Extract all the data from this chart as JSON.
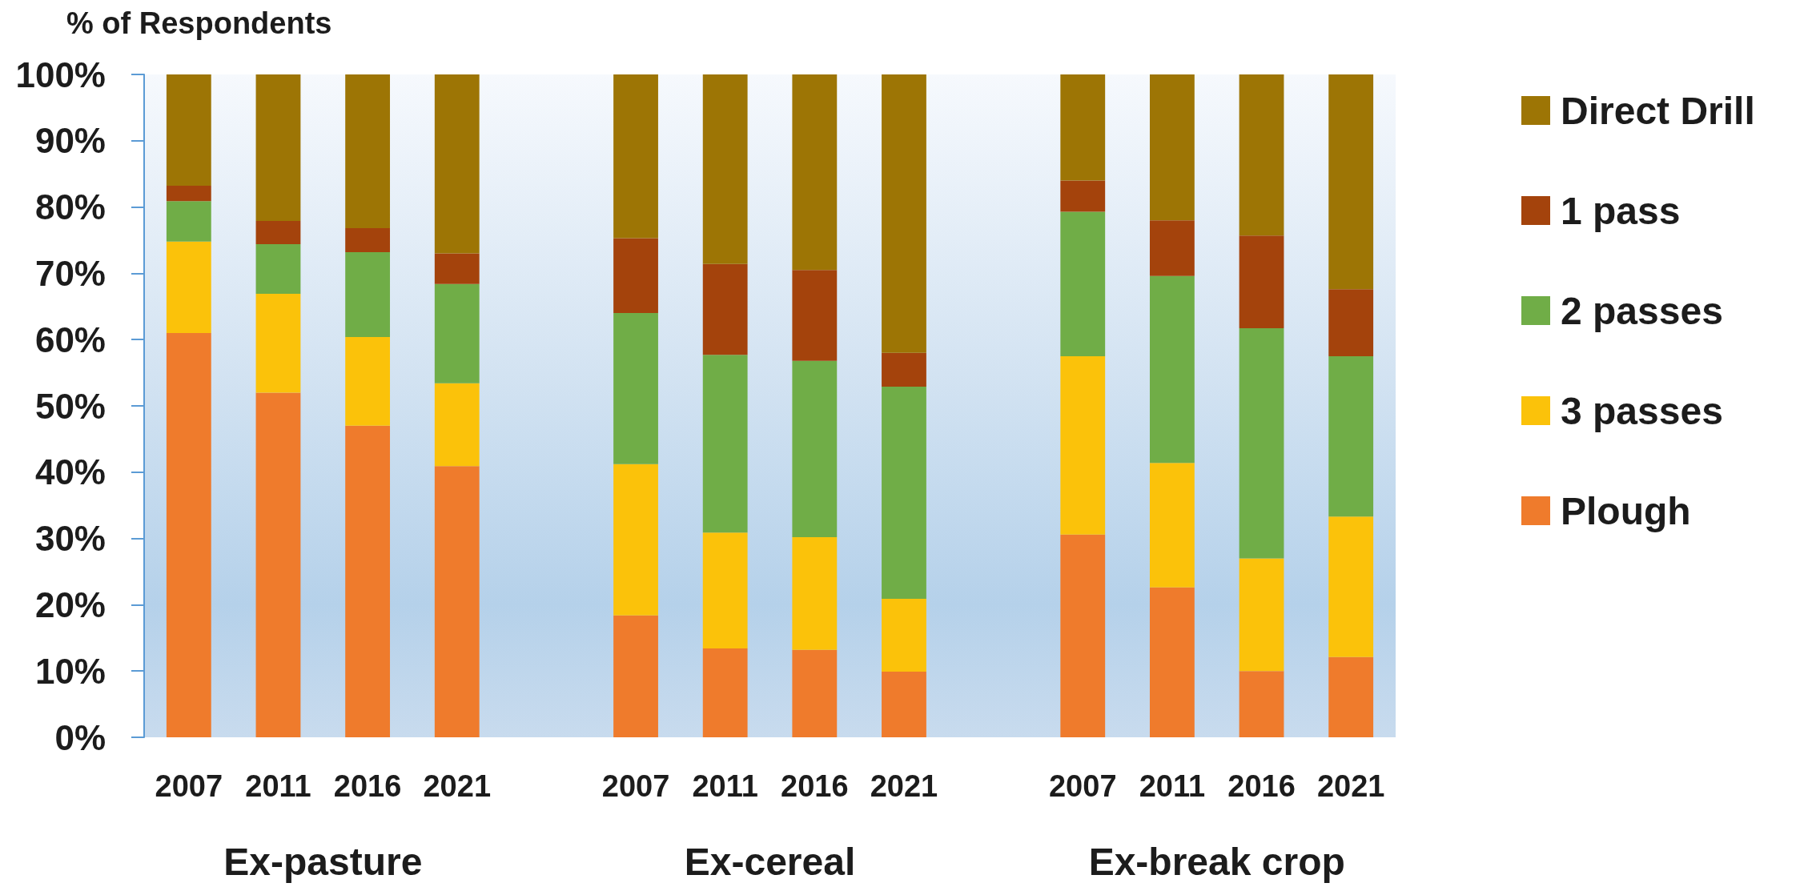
{
  "chart_data": {
    "type": "bar",
    "stacked": true,
    "ylabel": "% of Respondents",
    "categories": [
      "2007",
      "2011",
      "2016",
      "2021",
      null,
      "2007",
      "2011",
      "2016",
      "2021",
      null,
      "2007",
      "2011",
      "2016",
      "2021"
    ],
    "series": [
      {
        "name": "Plough",
        "color": "#ef7b2c",
        "values": [
          61.0,
          52.0,
          47.0,
          40.9,
          null,
          18.4,
          13.4,
          13.2,
          9.9,
          null,
          30.6,
          22.6,
          10.0,
          12.1
        ]
      },
      {
        "name": "3 passes",
        "color": "#fbc20a",
        "values": [
          13.8,
          14.9,
          13.4,
          12.5,
          null,
          22.8,
          17.5,
          17.0,
          11.0,
          null,
          26.9,
          18.8,
          17.0,
          21.2
        ]
      },
      {
        "name": "2 passes",
        "color": "#70ad47",
        "values": [
          6.1,
          7.5,
          12.8,
          15.0,
          null,
          22.8,
          26.8,
          26.6,
          32.0,
          null,
          21.8,
          28.2,
          34.7,
          24.2
        ]
      },
      {
        "name": "1 pass",
        "color": "#a4430c",
        "values": [
          2.3,
          3.5,
          3.6,
          4.6,
          null,
          11.3,
          13.7,
          13.7,
          5.1,
          null,
          4.7,
          8.4,
          14.0,
          10.1
        ]
      },
      {
        "name": "Direct Drill",
        "color": "#9d7505",
        "values": [
          16.8,
          22.1,
          23.2,
          27.0,
          null,
          24.7,
          28.6,
          29.5,
          42.0,
          null,
          16.0,
          22.0,
          24.3,
          32.4
        ]
      }
    ],
    "ylim": [
      0,
      100
    ],
    "yticks": [
      {
        "value": 0,
        "label": "0%"
      },
      {
        "value": 10,
        "label": "10%"
      },
      {
        "value": 20,
        "label": "20%"
      },
      {
        "value": 30,
        "label": "30%"
      },
      {
        "value": 40,
        "label": "40%"
      },
      {
        "value": 50,
        "label": "50%"
      },
      {
        "value": 60,
        "label": "60%"
      },
      {
        "value": 70,
        "label": "70%"
      },
      {
        "value": 80,
        "label": "80%"
      },
      {
        "value": 90,
        "label": "90%"
      },
      {
        "value": 100,
        "label": "100%"
      }
    ],
    "annotations": [
      "Ex-pasture",
      "Ex-cereal",
      "Ex-break crop"
    ],
    "legend": "right"
  }
}
